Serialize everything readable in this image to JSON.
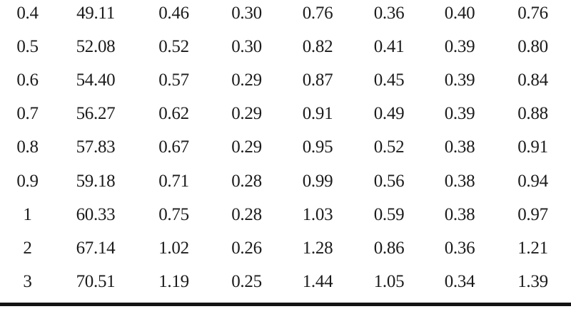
{
  "page": {
    "background_color": "#ffffff",
    "text_color": "#1b1b1b",
    "rule_color": "#131313"
  },
  "table": {
    "rows": [
      [
        "0.4",
        "49.11",
        "0.46",
        "0.30",
        "0.76",
        "0.36",
        "0.40",
        "0.76"
      ],
      [
        "0.5",
        "52.08",
        "0.52",
        "0.30",
        "0.82",
        "0.41",
        "0.39",
        "0.80"
      ],
      [
        "0.6",
        "54.40",
        "0.57",
        "0.29",
        "0.87",
        "0.45",
        "0.39",
        "0.84"
      ],
      [
        "0.7",
        "56.27",
        "0.62",
        "0.29",
        "0.91",
        "0.49",
        "0.39",
        "0.88"
      ],
      [
        "0.8",
        "57.83",
        "0.67",
        "0.29",
        "0.95",
        "0.52",
        "0.38",
        "0.91"
      ],
      [
        "0.9",
        "59.18",
        "0.71",
        "0.28",
        "0.99",
        "0.56",
        "0.38",
        "0.94"
      ],
      [
        "1",
        "60.33",
        "0.75",
        "0.28",
        "1.03",
        "0.59",
        "0.38",
        "0.97"
      ],
      [
        "2",
        "67.14",
        "1.02",
        "0.26",
        "1.28",
        "0.86",
        "0.36",
        "1.21"
      ],
      [
        "3",
        "70.51",
        "1.19",
        "0.25",
        "1.44",
        "1.05",
        "0.34",
        "1.39"
      ]
    ]
  },
  "chart_data": {
    "type": "table",
    "n_rows": 9,
    "n_columns": 8,
    "header_visible": false,
    "rows": [
      [
        0.4,
        49.11,
        0.46,
        0.3,
        0.76,
        0.36,
        0.4,
        0.76
      ],
      [
        0.5,
        52.08,
        0.52,
        0.3,
        0.82,
        0.41,
        0.39,
        0.8
      ],
      [
        0.6,
        54.4,
        0.57,
        0.29,
        0.87,
        0.45,
        0.39,
        0.84
      ],
      [
        0.7,
        56.27,
        0.62,
        0.29,
        0.91,
        0.49,
        0.39,
        0.88
      ],
      [
        0.8,
        57.83,
        0.67,
        0.29,
        0.95,
        0.52,
        0.38,
        0.91
      ],
      [
        0.9,
        59.18,
        0.71,
        0.28,
        0.99,
        0.56,
        0.38,
        0.94
      ],
      [
        1,
        60.33,
        0.75,
        0.28,
        1.03,
        0.59,
        0.38,
        0.97
      ],
      [
        2,
        67.14,
        1.02,
        0.26,
        1.28,
        0.86,
        0.36,
        1.21
      ],
      [
        3,
        70.51,
        1.19,
        0.25,
        1.44,
        1.05,
        0.34,
        1.39
      ]
    ],
    "layout": {
      "bottom_rule": "single thick full-width black rule",
      "gridlines": false
    }
  }
}
